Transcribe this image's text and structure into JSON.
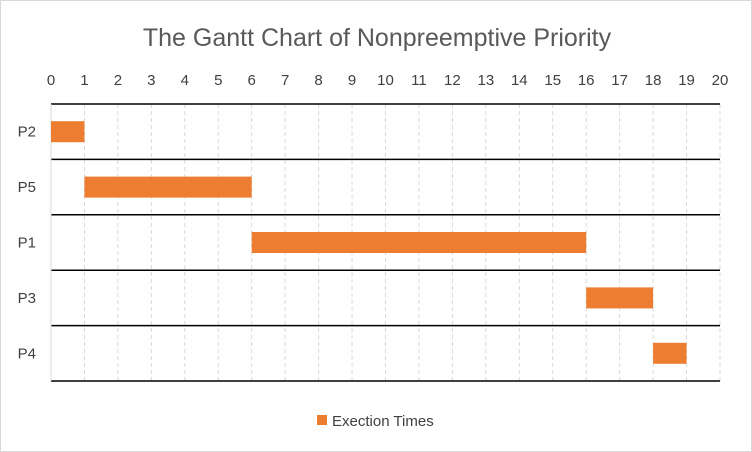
{
  "chart_data": {
    "type": "bar",
    "title": "The Gantt Chart of Nonpreemptive Priority",
    "xlim": [
      0,
      20
    ],
    "x_ticks": [
      0,
      1,
      2,
      3,
      4,
      5,
      6,
      7,
      8,
      9,
      10,
      11,
      12,
      13,
      14,
      15,
      16,
      17,
      18,
      19,
      20
    ],
    "x_axis_position": "top",
    "categories": [
      "P2",
      "P5",
      "P1",
      "P3",
      "P4"
    ],
    "series": [
      {
        "name": "Exection Times",
        "color": "#ed7d31",
        "start": [
          0,
          1,
          6,
          16,
          18
        ],
        "end": [
          1,
          6,
          16,
          18,
          19
        ]
      }
    ],
    "grid": {
      "vertical_dashed": true,
      "horizontal_solid": true
    },
    "legend": {
      "position": "bottom",
      "label": "Exection Times"
    }
  }
}
